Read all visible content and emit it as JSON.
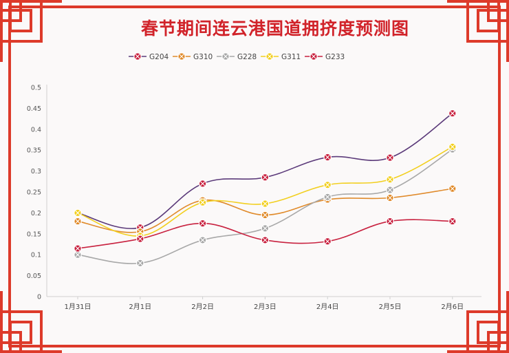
{
  "chart_data": {
    "type": "line",
    "title": "春节期间连云港国道拥挤度预测图",
    "xlabel": "",
    "ylabel": "",
    "categories": [
      "1月31日",
      "2月1日",
      "2月2日",
      "2月3日",
      "2月4日",
      "2月5日",
      "2月6日"
    ],
    "ylim": [
      0,
      0.5
    ],
    "yticks": [
      "0",
      "0.05",
      "0.1",
      "0.15",
      "0.2",
      "0.25",
      "0.3",
      "0.35",
      "0.4",
      "0.45",
      "0.5"
    ],
    "grid": false,
    "legend_position": "top-center",
    "smooth": true,
    "series": [
      {
        "name": "G204",
        "color": "#5b3a7a",
        "marker": "#c8213f",
        "values": [
          0.2,
          0.165,
          0.27,
          0.285,
          0.333,
          0.332,
          0.438
        ]
      },
      {
        "name": "G310",
        "color": "#e08a2a",
        "marker": "#e08a2a",
        "values": [
          0.18,
          0.155,
          0.23,
          0.195,
          0.232,
          0.236,
          0.258
        ]
      },
      {
        "name": "G228",
        "color": "#a8a8a8",
        "marker": "#a8a8a8",
        "values": [
          0.1,
          0.08,
          0.135,
          0.163,
          0.238,
          0.255,
          0.352
        ]
      },
      {
        "name": "G311",
        "color": "#f2cf1f",
        "marker": "#f2cf1f",
        "values": [
          0.2,
          0.145,
          0.225,
          0.222,
          0.267,
          0.28,
          0.358
        ]
      },
      {
        "name": "G233",
        "color": "#c8213f",
        "marker": "#c8213f",
        "values": [
          0.115,
          0.138,
          0.175,
          0.135,
          0.132,
          0.18,
          0.18
        ]
      }
    ]
  }
}
